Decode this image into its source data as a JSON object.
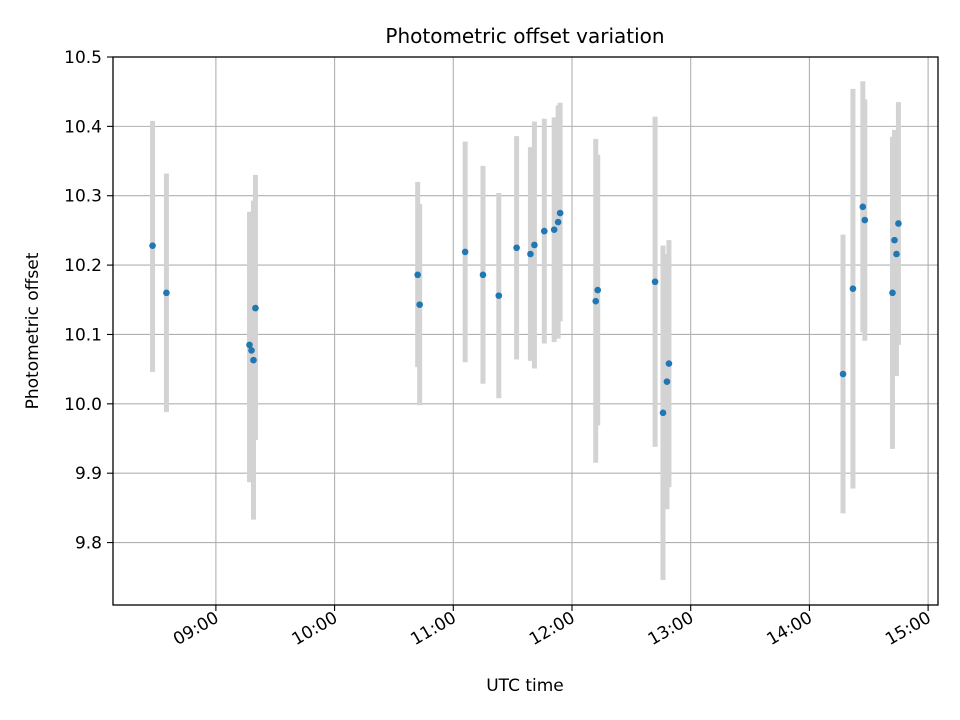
{
  "chart_data": {
    "type": "scatter",
    "title": "Photometric offset variation",
    "xlabel": "UTC time",
    "ylabel": "Photometric offset",
    "x_tick_labels": [
      "09:00",
      "10:00",
      "11:00",
      "12:00",
      "13:00",
      "14:00",
      "15:00"
    ],
    "y_tick_labels": [
      "9.8",
      "9.9",
      "10.0",
      "10.1",
      "10.2",
      "10.3",
      "10.4",
      "10.5"
    ],
    "ylim": [
      9.71,
      10.5
    ],
    "xlim": [
      "08:08",
      "15:05"
    ],
    "grid": true,
    "colors": {
      "points": "#1f77b4",
      "error_bars": "#d3d3d3",
      "grid": "#b0b0b0"
    },
    "points": [
      {
        "time": "08:28",
        "y": 10.228,
        "y_low": 10.046,
        "y_high": 10.408
      },
      {
        "time": "08:35",
        "y": 10.16,
        "y_low": 9.988,
        "y_high": 10.332
      },
      {
        "time": "09:17",
        "y": 10.085,
        "y_low": 9.887,
        "y_high": 10.277
      },
      {
        "time": "09:18",
        "y": 10.077,
        "y_low": 9.907,
        "y_high": 10.247
      },
      {
        "time": "09:19",
        "y": 10.063,
        "y_low": 9.833,
        "y_high": 10.293
      },
      {
        "time": "09:20",
        "y": 10.138,
        "y_low": 9.948,
        "y_high": 10.33
      },
      {
        "time": "10:42",
        "y": 10.186,
        "y_low": 10.053,
        "y_high": 10.32
      },
      {
        "time": "10:43",
        "y": 10.143,
        "y_low": 9.998,
        "y_high": 10.288
      },
      {
        "time": "11:06",
        "y": 10.219,
        "y_low": 10.06,
        "y_high": 10.378
      },
      {
        "time": "11:15",
        "y": 10.186,
        "y_low": 10.029,
        "y_high": 10.343
      },
      {
        "time": "11:23",
        "y": 10.156,
        "y_low": 10.008,
        "y_high": 10.304
      },
      {
        "time": "11:32",
        "y": 10.225,
        "y_low": 10.064,
        "y_high": 10.386
      },
      {
        "time": "11:39",
        "y": 10.216,
        "y_low": 10.062,
        "y_high": 10.37
      },
      {
        "time": "11:41",
        "y": 10.229,
        "y_low": 10.051,
        "y_high": 10.407
      },
      {
        "time": "11:46",
        "y": 10.249,
        "y_low": 10.087,
        "y_high": 10.411
      },
      {
        "time": "11:51",
        "y": 10.251,
        "y_low": 10.089,
        "y_high": 10.413
      },
      {
        "time": "11:53",
        "y": 10.262,
        "y_low": 10.094,
        "y_high": 10.43
      },
      {
        "time": "11:54",
        "y": 10.275,
        "y_low": 10.119,
        "y_high": 10.434
      },
      {
        "time": "12:12",
        "y": 10.148,
        "y_low": 9.915,
        "y_high": 10.382
      },
      {
        "time": "12:13",
        "y": 10.164,
        "y_low": 9.969,
        "y_high": 10.359
      },
      {
        "time": "12:42",
        "y": 10.176,
        "y_low": 9.938,
        "y_high": 10.414
      },
      {
        "time": "12:46",
        "y": 9.987,
        "y_low": 9.746,
        "y_high": 10.228
      },
      {
        "time": "12:48",
        "y": 10.032,
        "y_low": 9.848,
        "y_high": 10.216
      },
      {
        "time": "12:49",
        "y": 10.058,
        "y_low": 9.88,
        "y_high": 10.236
      },
      {
        "time": "14:17",
        "y": 10.043,
        "y_low": 9.842,
        "y_high": 10.244
      },
      {
        "time": "14:22",
        "y": 10.166,
        "y_low": 9.878,
        "y_high": 10.454
      },
      {
        "time": "14:27",
        "y": 10.284,
        "y_low": 10.103,
        "y_high": 10.465
      },
      {
        "time": "14:28",
        "y": 10.265,
        "y_low": 10.091,
        "y_high": 10.439
      },
      {
        "time": "14:42",
        "y": 10.16,
        "y_low": 9.935,
        "y_high": 10.385
      },
      {
        "time": "14:43",
        "y": 10.236,
        "y_low": 10.077,
        "y_high": 10.395
      },
      {
        "time": "14:44",
        "y": 10.216,
        "y_low": 10.04,
        "y_high": 10.392
      },
      {
        "time": "14:45",
        "y": 10.26,
        "y_low": 10.085,
        "y_high": 10.435
      }
    ]
  }
}
